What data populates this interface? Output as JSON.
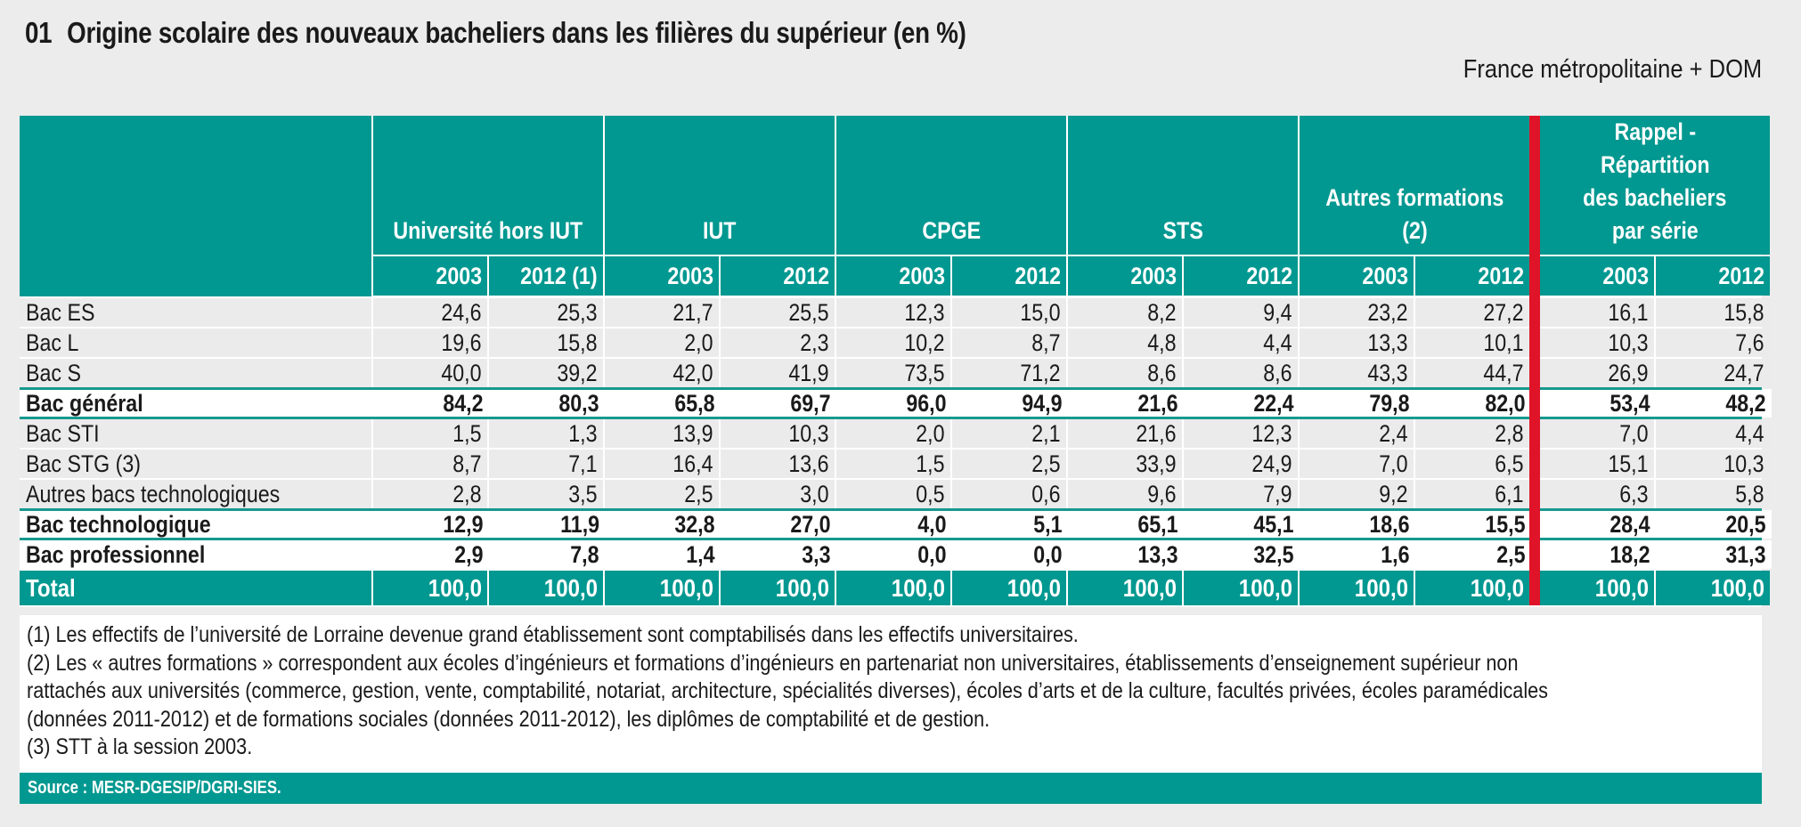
{
  "title": {
    "number": "01",
    "text": "Origine scolaire des nouveaux bacheliers dans les filières du supérieur (en %)"
  },
  "scope": "France métropolitaine + DOM",
  "colors": {
    "teal": "#009890",
    "red_separator": "#e01428",
    "row_gray": "#ebebeb"
  },
  "table": {
    "groups": [
      {
        "label_lines": [
          "Université hors IUT"
        ],
        "years": [
          "2003",
          "2012 (1)"
        ]
      },
      {
        "label_lines": [
          "IUT"
        ],
        "years": [
          "2003",
          "2012"
        ]
      },
      {
        "label_lines": [
          "CPGE"
        ],
        "years": [
          "2003",
          "2012"
        ]
      },
      {
        "label_lines": [
          "STS"
        ],
        "years": [
          "2003",
          "2012"
        ]
      },
      {
        "label_lines": [
          "Autres formations",
          "(2)"
        ],
        "years": [
          "2003",
          "2012"
        ]
      },
      {
        "label_lines": [
          "Rappel -",
          "Répartition",
          "des bacheliers",
          "par série"
        ],
        "years": [
          "2003",
          "2012"
        ]
      }
    ],
    "rows": [
      {
        "label": "Bac ES",
        "type": "detail",
        "values": [
          "24,6",
          "25,3",
          "21,7",
          "25,5",
          "12,3",
          "15,0",
          "8,2",
          "9,4",
          "23,2",
          "27,2",
          "16,1",
          "15,8"
        ]
      },
      {
        "label": "Bac L",
        "type": "detail",
        "values": [
          "19,6",
          "15,8",
          "2,0",
          "2,3",
          "10,2",
          "8,7",
          "4,8",
          "4,4",
          "13,3",
          "10,1",
          "10,3",
          "7,6"
        ]
      },
      {
        "label": "Bac S",
        "type": "detail",
        "values": [
          "40,0",
          "39,2",
          "42,0",
          "41,9",
          "73,5",
          "71,2",
          "8,6",
          "8,6",
          "43,3",
          "44,7",
          "26,9",
          "24,7"
        ]
      },
      {
        "label": "Bac général",
        "type": "subtotal",
        "values": [
          "84,2",
          "80,3",
          "65,8",
          "69,7",
          "96,0",
          "94,9",
          "21,6",
          "22,4",
          "79,8",
          "82,0",
          "53,4",
          "48,2"
        ]
      },
      {
        "label": "Bac STI",
        "type": "detail",
        "values": [
          "1,5",
          "1,3",
          "13,9",
          "10,3",
          "2,0",
          "2,1",
          "21,6",
          "12,3",
          "2,4",
          "2,8",
          "7,0",
          "4,4"
        ]
      },
      {
        "label": "Bac STG (3)",
        "type": "detail",
        "values": [
          "8,7",
          "7,1",
          "16,4",
          "13,6",
          "1,5",
          "2,5",
          "33,9",
          "24,9",
          "7,0",
          "6,5",
          "15,1",
          "10,3"
        ]
      },
      {
        "label": "Autres bacs technologiques",
        "type": "detail",
        "values": [
          "2,8",
          "3,5",
          "2,5",
          "3,0",
          "0,5",
          "0,6",
          "9,6",
          "7,9",
          "9,2",
          "6,1",
          "6,3",
          "5,8"
        ]
      },
      {
        "label": "Bac technologique",
        "type": "subtotal",
        "values": [
          "12,9",
          "11,9",
          "32,8",
          "27,0",
          "4,0",
          "5,1",
          "65,1",
          "45,1",
          "18,6",
          "15,5",
          "28,4",
          "20,5"
        ]
      },
      {
        "label": "Bac professionnel",
        "type": "subtotal",
        "values": [
          "2,9",
          "7,8",
          "1,4",
          "3,3",
          "0,0",
          "0,0",
          "13,3",
          "32,5",
          "1,6",
          "2,5",
          "18,2",
          "31,3"
        ]
      },
      {
        "label": "Total",
        "type": "total",
        "values": [
          "100,0",
          "100,0",
          "100,0",
          "100,0",
          "100,0",
          "100,0",
          "100,0",
          "100,0",
          "100,0",
          "100,0",
          "100,0",
          "100,0"
        ]
      }
    ]
  },
  "notes": [
    "(1) Les effectifs de l’université de Lorraine devenue grand établissement sont comptabilisés dans les effectifs universitaires.",
    "(2) Les « autres formations » correspondent aux écoles d’ingénieurs et formations d’ingénieurs en partenariat non universitaires, établissements d’enseignement supérieur  non",
    "rattachés aux universités (commerce, gestion, vente, comptabilité, notariat, architecture, spécialités diverses), écoles d’arts et de la culture, facultés privées, écoles paramédicales",
    "(données 2011-2012) et de formations sociales (données 2011-2012), les diplômes de comptabilité et de gestion.",
    "(3) STT à la session 2003."
  ],
  "source": "Source : MESR-DGESIP/DGRI-SIES."
}
